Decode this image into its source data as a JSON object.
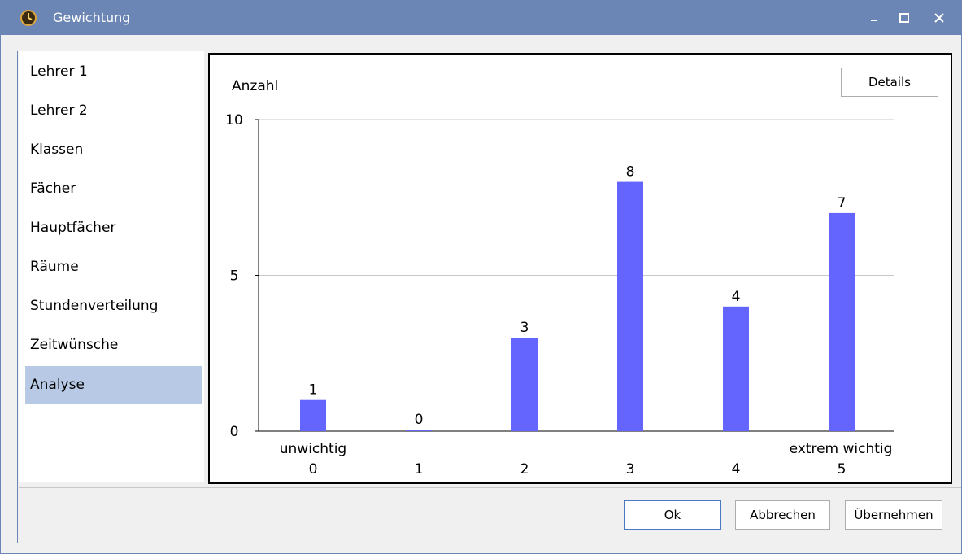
{
  "window": {
    "title": "Gewichtung",
    "icon": "clock-app-icon",
    "controls": [
      "minimize-icon",
      "maximize-icon",
      "close-icon"
    ]
  },
  "sidebar": {
    "items": [
      {
        "label": "Lehrer 1"
      },
      {
        "label": "Lehrer 2"
      },
      {
        "label": "Klassen"
      },
      {
        "label": "Fächer"
      },
      {
        "label": "Hauptfächer"
      },
      {
        "label": "Räume"
      },
      {
        "label": "Stundenverteilung"
      },
      {
        "label": "Zeitwünsche"
      },
      {
        "label": "Analyse",
        "selected": true
      }
    ],
    "selected_color": "#b7c9e4"
  },
  "details_label": "Details",
  "chart_data": {
    "type": "bar",
    "ylabel": "Anzahl",
    "categories": [
      "0",
      "1",
      "2",
      "3",
      "4",
      "5"
    ],
    "values": [
      1,
      0,
      3,
      8,
      4,
      7
    ],
    "data_labels": [
      "1",
      "0",
      "3",
      "8",
      "4",
      "7"
    ],
    "ylim": [
      0,
      10
    ],
    "yticks": [
      "0",
      "5",
      "10"
    ],
    "x_annotations": {
      "left": "unwichtig",
      "right": "extrem wichtig"
    },
    "grid": true,
    "bar_color": "#6464ff"
  },
  "footer": {
    "ok_label": "Ok",
    "cancel_label": "Abbrechen",
    "apply_label": "Übernehmen"
  }
}
